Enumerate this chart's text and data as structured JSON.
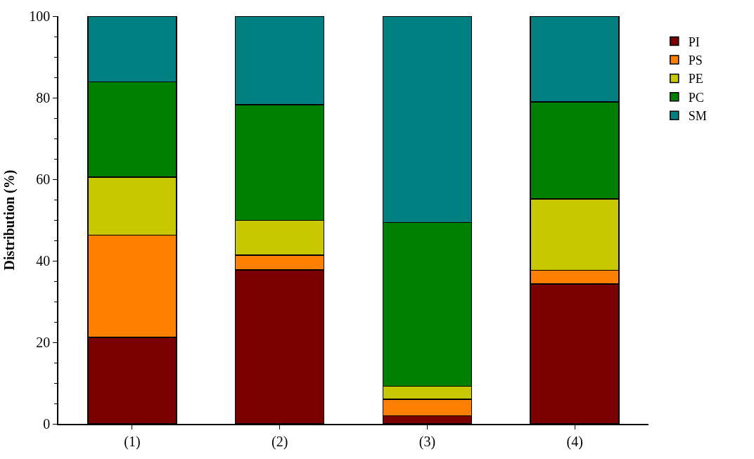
{
  "chart_data": {
    "type": "bar",
    "ylabel": "Distribution (%)",
    "categories": [
      "(1)",
      "(2)",
      "(3)",
      "(4)"
    ],
    "stacked": true,
    "series": [
      {
        "name": "PI",
        "color": "#7b0000",
        "values": [
          21.2,
          37.8,
          2.0,
          34.3
        ]
      },
      {
        "name": "PS",
        "color": "#ff8000",
        "values": [
          25.1,
          3.6,
          4.0,
          3.4
        ]
      },
      {
        "name": "PE",
        "color": "#c8c800",
        "values": [
          14.2,
          8.5,
          3.2,
          17.5
        ]
      },
      {
        "name": "PC",
        "color": "#008000",
        "values": [
          23.4,
          28.4,
          40.2,
          23.8
        ]
      },
      {
        "name": "SM",
        "color": "#008080",
        "values": [
          16.1,
          21.7,
          50.6,
          21.0
        ]
      }
    ],
    "ylim": [
      0,
      100
    ],
    "yticks": [
      0,
      20,
      40,
      60,
      80,
      100
    ],
    "legend": "top right"
  }
}
